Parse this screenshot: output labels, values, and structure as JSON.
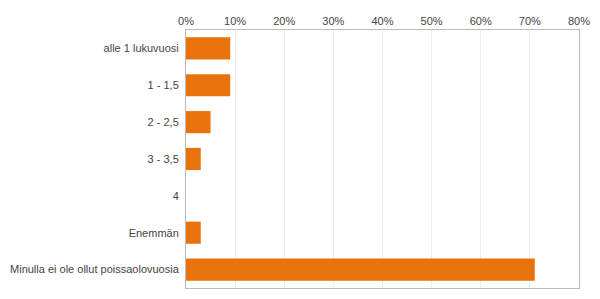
{
  "chart_data": {
    "type": "bar",
    "orientation": "horizontal",
    "categories": [
      "Minulla ei ole ollut poissaolovuosia",
      "Enemmän",
      "4",
      "3 - 3,5",
      "2 - 2,5",
      "1 - 1,5",
      "alle 1 lukuvuosi"
    ],
    "values": [
      71,
      3,
      0,
      3,
      5,
      9,
      9
    ],
    "color": "#e8720c",
    "xlim": [
      0,
      80
    ],
    "xticks": [
      {
        "value": 0,
        "label": "0%"
      },
      {
        "value": 10,
        "label": "10%"
      },
      {
        "value": 20,
        "label": "20%"
      },
      {
        "value": 30,
        "label": "30%"
      },
      {
        "value": 40,
        "label": "40%"
      },
      {
        "value": 50,
        "label": "50%"
      },
      {
        "value": 60,
        "label": "60%"
      },
      {
        "value": 70,
        "label": "70%"
      },
      {
        "value": 80,
        "label": "80%"
      }
    ],
    "grid": true
  }
}
